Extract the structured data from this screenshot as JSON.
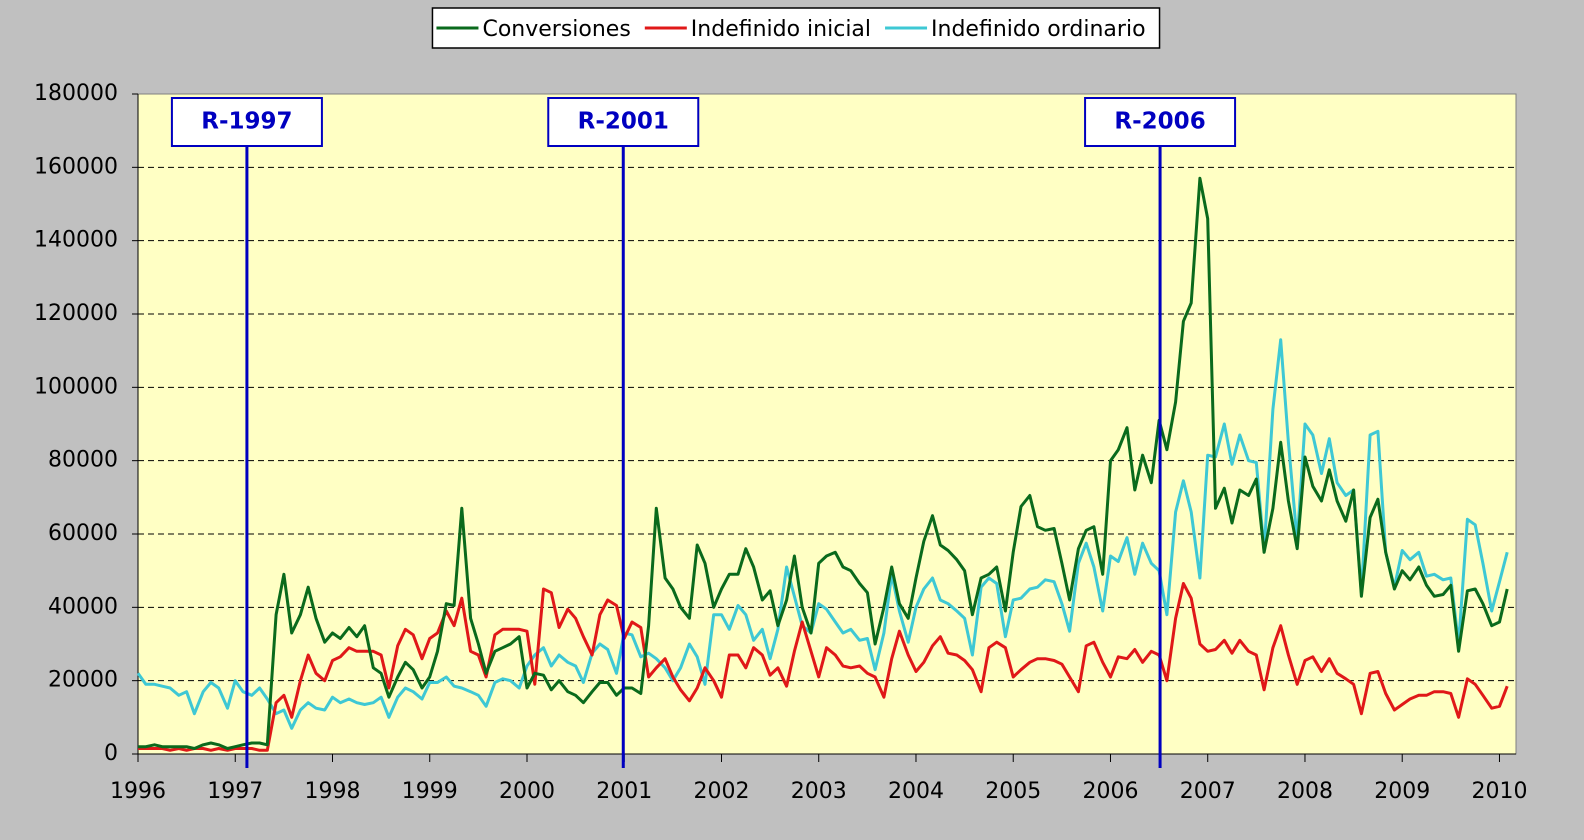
{
  "chart_data": {
    "type": "line",
    "legend": "top",
    "grid": true,
    "background": "#ffffc4",
    "xlim": [
      1996,
      2010.17
    ],
    "xticks": [
      1996,
      1997,
      1998,
      1999,
      2000,
      2001,
      2002,
      2003,
      2004,
      2005,
      2006,
      2007,
      2008,
      2009,
      2010
    ],
    "ylim": [
      0,
      180000
    ],
    "yticks": [
      0,
      20000,
      40000,
      60000,
      80000,
      100000,
      120000,
      140000,
      160000,
      180000
    ],
    "annotations": [
      {
        "text": "R-1997",
        "x": 1997.12,
        "color": "#0000c0"
      },
      {
        "text": "R-2001",
        "x": 2000.99,
        "color": "#0000c0"
      },
      {
        "text": "R-2006",
        "x": 2006.51,
        "color": "#0000c0"
      }
    ],
    "x": [
      1996,
      1996.08,
      1996.17,
      1996.25,
      1996.33,
      1996.42,
      1996.5,
      1996.58,
      1996.67,
      1996.75,
      1996.83,
      1996.92,
      1997,
      1997.08,
      1997.17,
      1997.25,
      1997.33,
      1997.42,
      1997.5,
      1997.58,
      1997.67,
      1997.75,
      1997.83,
      1997.92,
      1998,
      1998.08,
      1998.17,
      1998.25,
      1998.33,
      1998.42,
      1998.5,
      1998.58,
      1998.67,
      1998.75,
      1998.83,
      1998.92,
      1999,
      1999.08,
      1999.17,
      1999.25,
      1999.33,
      1999.42,
      1999.5,
      1999.58,
      1999.67,
      1999.75,
      1999.83,
      1999.92,
      2000,
      2000.08,
      2000.17,
      2000.25,
      2000.33,
      2000.42,
      2000.5,
      2000.58,
      2000.67,
      2000.75,
      2000.83,
      2000.92,
      2001,
      2001.08,
      2001.17,
      2001.25,
      2001.33,
      2001.42,
      2001.5,
      2001.58,
      2001.67,
      2001.75,
      2001.83,
      2001.92,
      2002,
      2002.08,
      2002.17,
      2002.25,
      2002.33,
      2002.42,
      2002.5,
      2002.58,
      2002.67,
      2002.75,
      2002.83,
      2002.92,
      2003,
      2003.08,
      2003.17,
      2003.25,
      2003.33,
      2003.42,
      2003.5,
      2003.58,
      2003.67,
      2003.75,
      2003.83,
      2003.92,
      2004,
      2004.08,
      2004.17,
      2004.25,
      2004.33,
      2004.42,
      2004.5,
      2004.58,
      2004.67,
      2004.75,
      2004.83,
      2004.92,
      2005,
      2005.08,
      2005.17,
      2005.25,
      2005.33,
      2005.42,
      2005.5,
      2005.58,
      2005.67,
      2005.75,
      2005.83,
      2005.92,
      2006,
      2006.08,
      2006.17,
      2006.25,
      2006.33,
      2006.42,
      2006.5,
      2006.58,
      2006.67,
      2006.75,
      2006.83,
      2006.92,
      2007,
      2007.08,
      2007.17,
      2007.25,
      2007.33,
      2007.42,
      2007.5,
      2007.58,
      2007.67,
      2007.75,
      2007.83,
      2007.92,
      2008,
      2008.08,
      2008.17,
      2008.25,
      2008.33,
      2008.42,
      2008.5,
      2008.58,
      2008.67,
      2008.75,
      2008.83,
      2008.92,
      2009,
      2009.08,
      2009.17,
      2009.25,
      2009.33,
      2009.42,
      2009.5,
      2009.58,
      2009.67,
      2009.75,
      2009.83,
      2009.92,
      2010,
      2010.08
    ],
    "series": [
      {
        "name": "Conversiones",
        "color": "#0a6a1c",
        "values": [
          2000,
          2000,
          2500,
          2000,
          2000,
          2000,
          2000,
          1500,
          2500,
          3000,
          2500,
          1500,
          2000,
          2500,
          3000,
          3000,
          2500,
          38000,
          49000,
          33000,
          38000,
          45500,
          37000,
          30500,
          33000,
          31500,
          34500,
          32000,
          35000,
          23500,
          22000,
          15500,
          21000,
          25000,
          23000,
          18000,
          21000,
          28000,
          41000,
          40500,
          67000,
          37000,
          30000,
          22000,
          28000,
          29000,
          30000,
          32000,
          18000,
          22000,
          21500,
          17500,
          20000,
          17000,
          16000,
          14000,
          17000,
          19500,
          19500,
          16000,
          18000,
          18000,
          16500,
          35000,
          67000,
          48000,
          45000,
          40000,
          37000,
          57000,
          52000,
          40000,
          45000,
          49000,
          49000,
          56000,
          51000,
          42000,
          44500,
          35000,
          42000,
          54000,
          40000,
          33000,
          52000,
          54000,
          55000,
          51000,
          50000,
          46500,
          44000,
          30000,
          40000,
          51000,
          41000,
          37000,
          48000,
          58000,
          65000,
          57000,
          55500,
          53000,
          50000,
          38000,
          48000,
          49000,
          51000,
          39000,
          55000,
          67500,
          70500,
          62000,
          61000,
          61500,
          52000,
          42000,
          56000,
          61000,
          62000,
          49000,
          80000,
          83000,
          89000,
          72000,
          81500,
          74000,
          91000,
          83000,
          96000,
          118000,
          123000,
          157000,
          146000,
          67000,
          72500,
          63000,
          72000,
          70500,
          75000,
          55000,
          67000,
          85000,
          69000,
          56000,
          81000,
          73000,
          69000,
          77500,
          69000,
          63500,
          72000,
          43000,
          64500,
          69500,
          55000,
          45000,
          50000,
          47500,
          51000,
          46000,
          43000,
          43500,
          46000,
          28000,
          44500,
          45000,
          41000,
          35000,
          36000,
          45000
        ]
      },
      {
        "name": "Indefinido inicial",
        "color": "#e01818",
        "values": [
          1500,
          1500,
          1500,
          1500,
          1000,
          1500,
          1000,
          1500,
          1500,
          1000,
          1500,
          1000,
          1500,
          1500,
          1500,
          1000,
          1000,
          14000,
          16000,
          10000,
          20000,
          27000,
          22000,
          20000,
          25500,
          26500,
          29000,
          28000,
          28000,
          28000,
          27000,
          18000,
          29500,
          34000,
          32500,
          26000,
          31500,
          33000,
          39000,
          35000,
          42500,
          28000,
          27000,
          21000,
          32500,
          34000,
          34000,
          34000,
          33500,
          19000,
          45000,
          44000,
          34500,
          39500,
          37000,
          32000,
          27000,
          38000,
          42000,
          40500,
          31500,
          36000,
          34500,
          21000,
          23500,
          26000,
          21000,
          17500,
          14500,
          18000,
          23500,
          20000,
          15500,
          27000,
          27000,
          23500,
          29000,
          27000,
          21500,
          23500,
          18500,
          28000,
          36000,
          28000,
          21000,
          29000,
          27000,
          24000,
          23500,
          24000,
          22000,
          21000,
          15500,
          26000,
          33500,
          27000,
          22500,
          25000,
          29500,
          32000,
          27500,
          27000,
          25500,
          23000,
          17000,
          29000,
          30500,
          29000,
          21000,
          23000,
          25000,
          26000,
          26000,
          25500,
          24500,
          21000,
          17000,
          29500,
          30500,
          25000,
          21000,
          26500,
          26000,
          28500,
          25000,
          28000,
          27000,
          20000,
          37000,
          46500,
          42500,
          30000,
          28000,
          28500,
          31000,
          27500,
          31000,
          28000,
          27000,
          17500,
          29000,
          35000,
          27000,
          19000,
          25500,
          26500,
          22500,
          26000,
          22000,
          20500,
          19000,
          11000,
          22000,
          22500,
          16500,
          12000,
          13500,
          15000,
          16000,
          16000,
          17000,
          17000,
          16500,
          10000,
          20500,
          19000,
          16000,
          12500,
          13000,
          18500
        ]
      },
      {
        "name": "Indefinido ordinario",
        "color": "#3ec8d4",
        "values": [
          22000,
          19000,
          19000,
          18500,
          18000,
          16000,
          17000,
          11000,
          17000,
          19500,
          18000,
          12500,
          20000,
          17000,
          16000,
          18000,
          15000,
          11000,
          12000,
          7000,
          12000,
          14000,
          12500,
          12000,
          15500,
          14000,
          15000,
          14000,
          13500,
          14000,
          15500,
          10000,
          15500,
          18000,
          17000,
          15000,
          19500,
          19500,
          21000,
          18500,
          18000,
          17000,
          16000,
          13000,
          19500,
          20500,
          20000,
          18000,
          24000,
          27000,
          29000,
          24000,
          27000,
          25000,
          24000,
          19500,
          27500,
          30000,
          28500,
          22000,
          33000,
          32500,
          26500,
          27500,
          26000,
          23500,
          20000,
          23500,
          30000,
          26500,
          19000,
          38000,
          38000,
          34000,
          40500,
          38000,
          31000,
          34000,
          26000,
          34000,
          51000,
          43000,
          35000,
          33000,
          41000,
          39500,
          36000,
          33000,
          34000,
          31000,
          31500,
          23000,
          33000,
          49000,
          39000,
          30500,
          40000,
          45000,
          48000,
          42000,
          41000,
          39000,
          37000,
          27000,
          45500,
          48000,
          46500,
          32000,
          42000,
          42500,
          45000,
          45500,
          47500,
          47000,
          41000,
          33500,
          52000,
          57500,
          51000,
          39000,
          54000,
          52500,
          59000,
          49000,
          57500,
          52000,
          50000,
          38000,
          66000,
          74500,
          66000,
          48000,
          81500,
          81000,
          90000,
          79000,
          87000,
          80000,
          79500,
          55500,
          94000,
          113000,
          85000,
          58000,
          90000,
          87000,
          76500,
          86000,
          74000,
          70500,
          72000,
          44000,
          87000,
          88000,
          55000,
          45500,
          55500,
          53000,
          55000,
          48500,
          49000,
          47500,
          48000,
          30000,
          64000,
          62500,
          52000,
          39000,
          47000,
          55000
        ]
      }
    ]
  }
}
